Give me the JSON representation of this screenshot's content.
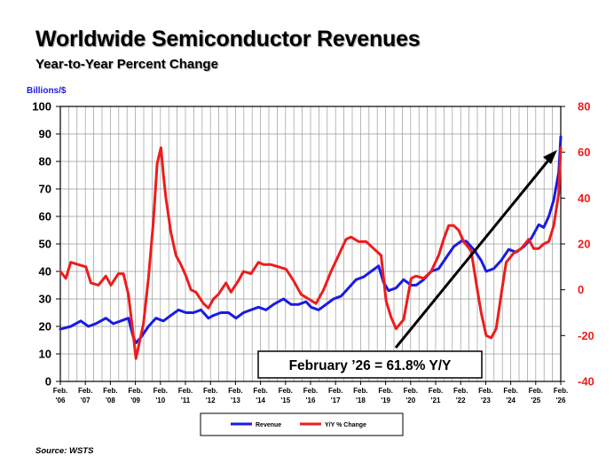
{
  "title": "Worldwide Semiconductor Revenues",
  "subtitle": "Year-to-Year Percent Change",
  "source": "Source: WSTS",
  "callout": "February ’26 = 61.8% Y/Y",
  "colors": {
    "revenue": "#1a1ae6",
    "yoy": "#ee1c1c",
    "left_axis_label": "#1a1ae6",
    "right_axis": "#ee1c1c",
    "grid": "#9a9a9a"
  },
  "chart_data": {
    "type": "line",
    "title": "Worldwide Semiconductor Revenues",
    "subtitle": "Year-to-Year Percent Change",
    "ylabel": "Billions/$",
    "ylim": [
      0,
      100
    ],
    "yticks": [
      "0",
      "10",
      "20",
      "30",
      "40",
      "50",
      "60",
      "70",
      "80",
      "90",
      "100"
    ],
    "y2lim": [
      -40,
      80
    ],
    "y2ticks": [
      "-40",
      "-20",
      "0",
      "20",
      "40",
      "60",
      "80"
    ],
    "x_start": "Feb. '06",
    "x_end": "Feb. '26",
    "xticks": [
      {
        "top": "Feb.",
        "bottom": "'06"
      },
      {
        "top": "Feb.",
        "bottom": "'07"
      },
      {
        "top": "Feb.",
        "bottom": "'08"
      },
      {
        "top": "Feb.",
        "bottom": "'09"
      },
      {
        "top": "Feb.",
        "bottom": "'10"
      },
      {
        "top": "Feb.",
        "bottom": "'11"
      },
      {
        "top": "Feb.",
        "bottom": "'12"
      },
      {
        "top": "Feb.",
        "bottom": "'13"
      },
      {
        "top": "Feb.",
        "bottom": "'14"
      },
      {
        "top": "Feb.",
        "bottom": "'15"
      },
      {
        "top": "Feb.",
        "bottom": "'16"
      },
      {
        "top": "Feb.",
        "bottom": "'17"
      },
      {
        "top": "Feb.",
        "bottom": "'18"
      },
      {
        "top": "Feb.",
        "bottom": "'19"
      },
      {
        "top": "Feb.",
        "bottom": "'20"
      },
      {
        "top": "Feb.",
        "bottom": "'21"
      },
      {
        "top": "Feb.",
        "bottom": "'22"
      },
      {
        "top": "Feb.",
        "bottom": "'23"
      },
      {
        "top": "Feb.",
        "bottom": "'24"
      },
      {
        "top": "Feb.",
        "bottom": "'25"
      },
      {
        "top": "Feb.",
        "bottom": "'26"
      }
    ],
    "grid": true,
    "legend_position": "bottom-center",
    "series": [
      {
        "name": "Revenue",
        "axis": "left",
        "x": [
          2006.08,
          2006.5,
          2006.9,
          2007.2,
          2007.5,
          2007.9,
          2008.2,
          2008.5,
          2008.8,
          2009.0,
          2009.1,
          2009.3,
          2009.6,
          2009.9,
          2010.2,
          2010.5,
          2010.8,
          2011.1,
          2011.4,
          2011.7,
          2012.0,
          2012.2,
          2012.5,
          2012.8,
          2013.1,
          2013.4,
          2013.7,
          2014.0,
          2014.3,
          2014.6,
          2015.0,
          2015.3,
          2015.6,
          2015.9,
          2016.1,
          2016.4,
          2016.7,
          2017.0,
          2017.3,
          2017.6,
          2017.9,
          2018.2,
          2018.5,
          2018.8,
          2019.0,
          2019.2,
          2019.5,
          2019.8,
          2020.1,
          2020.3,
          2020.6,
          2020.9,
          2021.2,
          2021.5,
          2021.8,
          2022.1,
          2022.3,
          2022.6,
          2022.9,
          2023.1,
          2023.4,
          2023.7,
          2024.0,
          2024.3,
          2024.6,
          2024.9,
          2025.2,
          2025.4,
          2025.6,
          2025.8,
          2026.0,
          2026.08
        ],
        "values": [
          19,
          20,
          22,
          20,
          21,
          23,
          21,
          22,
          23,
          16,
          14,
          16,
          20,
          23,
          22,
          24,
          26,
          25,
          25,
          26,
          23,
          24,
          25,
          25,
          23,
          25,
          26,
          27,
          26,
          28,
          30,
          28,
          28,
          29,
          27,
          26,
          28,
          30,
          31,
          34,
          37,
          38,
          40,
          42,
          36,
          33,
          34,
          37,
          35,
          35,
          37,
          40,
          41,
          45,
          49,
          51,
          51,
          48,
          44,
          40,
          41,
          44,
          48,
          47,
          49,
          52,
          57,
          56,
          60,
          66,
          76,
          89
        ]
      },
      {
        "name": "Y/Y % Change",
        "axis": "right",
        "x": [
          2006.08,
          2006.3,
          2006.5,
          2006.8,
          2007.1,
          2007.3,
          2007.6,
          2007.9,
          2008.1,
          2008.4,
          2008.6,
          2008.8,
          2009.0,
          2009.1,
          2009.2,
          2009.4,
          2009.6,
          2009.8,
          2009.95,
          2010.1,
          2010.2,
          2010.3,
          2010.5,
          2010.7,
          2010.9,
          2011.1,
          2011.3,
          2011.5,
          2011.8,
          2012.0,
          2012.2,
          2012.4,
          2012.7,
          2012.9,
          2013.2,
          2013.4,
          2013.7,
          2014.0,
          2014.2,
          2014.5,
          2014.8,
          2015.1,
          2015.4,
          2015.7,
          2016.0,
          2016.3,
          2016.6,
          2016.9,
          2017.2,
          2017.5,
          2017.7,
          2018.0,
          2018.3,
          2018.6,
          2018.9,
          2019.1,
          2019.3,
          2019.5,
          2019.8,
          2020.1,
          2020.3,
          2020.6,
          2020.9,
          2021.2,
          2021.4,
          2021.6,
          2021.8,
          2022.0,
          2022.2,
          2022.5,
          2022.7,
          2022.9,
          2023.1,
          2023.3,
          2023.5,
          2023.7,
          2023.9,
          2024.2,
          2024.5,
          2024.8,
          2025.0,
          2025.2,
          2025.4,
          2025.6,
          2025.8,
          2026.0,
          2026.08
        ],
        "values": [
          8,
          5,
          12,
          11,
          10,
          3,
          2,
          6,
          2,
          7,
          7,
          -2,
          -20,
          -30,
          -25,
          -15,
          5,
          30,
          55,
          62,
          50,
          40,
          25,
          15,
          11,
          6,
          0,
          -1,
          -6,
          -8,
          -4,
          -2,
          3,
          -1,
          4,
          8,
          7,
          12,
          11,
          11,
          10,
          9,
          4,
          -2,
          -4,
          -6,
          0,
          8,
          15,
          22,
          23,
          21,
          21,
          18,
          15,
          -5,
          -12,
          -17,
          -13,
          5,
          6,
          5,
          8,
          15,
          22,
          28,
          28,
          26,
          21,
          17,
          3,
          -10,
          -20,
          -21,
          -17,
          -2,
          12,
          16,
          18,
          22,
          18,
          18,
          20,
          21,
          28,
          42,
          62
        ]
      }
    ],
    "annotations": [
      "February ’26 = 61.8% Y/Y"
    ]
  }
}
